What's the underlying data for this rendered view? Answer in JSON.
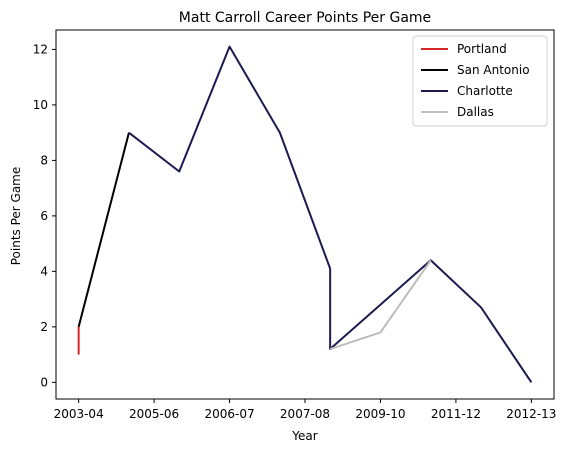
{
  "chart_data": {
    "type": "line",
    "title": "Matt Carroll  Career Points Per Game",
    "xlabel": "Year",
    "ylabel": "Points Per Game",
    "x_ticks": [
      "2003-04",
      "2005-06",
      "2006-07",
      "2007-08",
      "2009-10",
      "2011-12",
      "2012-13"
    ],
    "y_ticks": [
      0,
      2,
      4,
      6,
      8,
      10,
      12
    ],
    "xlim": [
      -0.45,
      9.45
    ],
    "ylim": [
      -0.6,
      12.7
    ],
    "legend_position": "top-right",
    "series": [
      {
        "name": "Portland",
        "color": "#d62728",
        "points": [
          [
            0,
            1.0
          ],
          [
            0,
            2.0
          ]
        ]
      },
      {
        "name": "San Antonio",
        "color": "#000000",
        "points": [
          [
            0,
            2.0
          ],
          [
            1,
            9.0
          ]
        ]
      },
      {
        "name": "Charlotte",
        "color": "#1c1a4f",
        "points": [
          [
            1,
            9.0
          ],
          [
            2,
            7.6
          ],
          [
            3,
            12.1
          ],
          [
            4,
            9.0
          ],
          [
            5,
            4.1
          ],
          [
            5,
            1.2
          ],
          [
            7,
            4.4
          ],
          [
            8,
            2.7
          ],
          [
            9,
            0.0
          ]
        ]
      },
      {
        "name": "Dallas",
        "color": "#bdbdbd",
        "points": [
          [
            5,
            1.2
          ],
          [
            6,
            1.8
          ],
          [
            7,
            4.4
          ]
        ]
      }
    ]
  }
}
